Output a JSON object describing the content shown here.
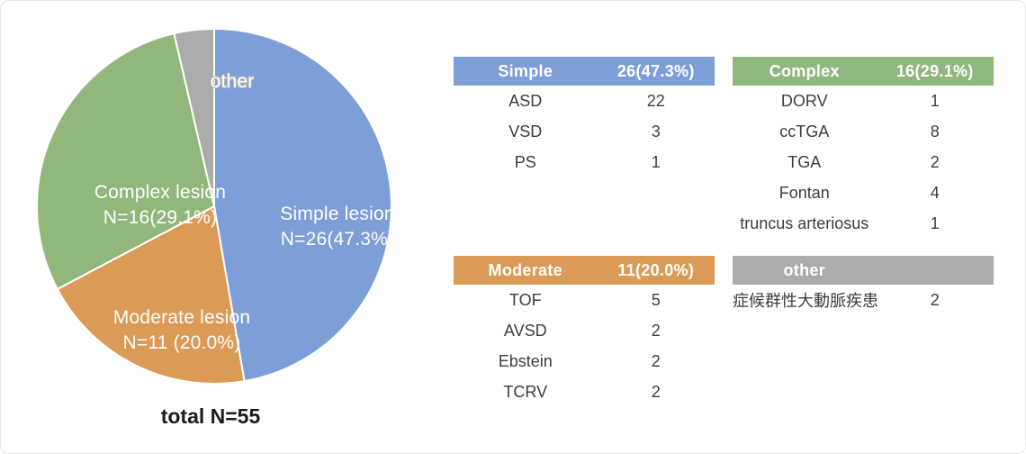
{
  "chart_data": {
    "type": "pie",
    "title": "",
    "total": 55,
    "total_label": "total N=55",
    "direction": "clockwise",
    "start_angle": "top",
    "legend": "none",
    "slices": [
      {
        "name": "Simple lesion",
        "value": 26,
        "pct": 47.3,
        "color": "#7d9ed7",
        "label_line1": "Simple lesion",
        "label_line2": "N=26(47.3%)"
      },
      {
        "name": "Moderate lesion",
        "value": 11,
        "pct": 20.0,
        "color": "#dc9a57",
        "label_line1": "Moderate lesion",
        "label_line2": "N=11 (20.0%)"
      },
      {
        "name": "Complex lesion",
        "value": 16,
        "pct": 29.1,
        "color": "#92b77c",
        "label_line1": "Complex lesion",
        "label_line2": "N=16(29.1%)"
      },
      {
        "name": "other",
        "value": 2,
        "pct": 3.6,
        "color": "#ababab",
        "label_line1": "other",
        "label_line2": ""
      }
    ]
  },
  "tables": [
    {
      "id": "simple",
      "color": "#7d9ed7",
      "header": {
        "name": "Simple",
        "count": "26(47.3%)"
      },
      "rows": [
        [
          "ASD",
          "22"
        ],
        [
          "VSD",
          "3"
        ],
        [
          "PS",
          "1"
        ]
      ]
    },
    {
      "id": "complex",
      "color": "#92b77c",
      "header": {
        "name": "Complex",
        "count": "16(29.1%)"
      },
      "rows": [
        [
          "DORV",
          "1"
        ],
        [
          "ccTGA",
          "8"
        ],
        [
          "TGA",
          "2"
        ],
        [
          "Fontan",
          "4"
        ],
        [
          "truncus arteriosus",
          "1"
        ]
      ]
    },
    {
      "id": "moderate",
      "color": "#dc9a57",
      "header": {
        "name": "Moderate",
        "count": "11(20.0%)"
      },
      "rows": [
        [
          "TOF",
          "5"
        ],
        [
          "AVSD",
          "2"
        ],
        [
          "Ebstein",
          "2"
        ],
        [
          "TCRV",
          "2"
        ]
      ]
    },
    {
      "id": "other",
      "color": "#ababab",
      "header": {
        "name": "other",
        "count": ""
      },
      "rows": [
        [
          "症候群性大動脈疾患",
          "2"
        ]
      ]
    }
  ]
}
